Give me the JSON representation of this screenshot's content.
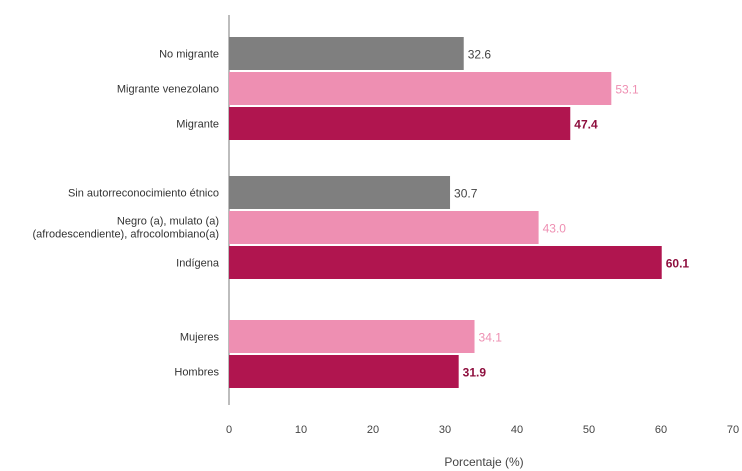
{
  "chart_data": {
    "type": "bar",
    "orientation": "horizontal",
    "title": "",
    "xlabel": "Porcentaje (%)",
    "ylabel": "",
    "xlim": [
      0,
      70
    ],
    "xticks": [
      "0",
      "10",
      "20",
      "30",
      "40",
      "50",
      "60",
      "70"
    ],
    "grid": false,
    "colors": {
      "gray": "#7f7f7f",
      "pink": "#ee8fb2",
      "crimson": "#b0154f"
    },
    "groups": [
      {
        "bars": [
          {
            "category": "No migrante",
            "value": 32.6,
            "label": "32.6",
            "color": "gray"
          },
          {
            "category": "Migrante venezolano",
            "value": 53.1,
            "label": "53.1",
            "color": "pink"
          },
          {
            "category": "Migrante",
            "value": 47.4,
            "label": "47.4",
            "color": "crimson"
          }
        ]
      },
      {
        "bars": [
          {
            "category": "Sin autorreconocimiento étnico",
            "value": 30.7,
            "label": "30.7",
            "color": "gray"
          },
          {
            "category": [
              "Negro (a), mulato (a)",
              "(afrodescendiente), afrocolombiano(a)"
            ],
            "value": 43.0,
            "label": "43.0",
            "color": "pink"
          },
          {
            "category": "Indígena",
            "value": 60.1,
            "label": "60.1",
            "color": "crimson"
          }
        ]
      },
      {
        "bars": [
          {
            "category": "Mujeres",
            "value": 34.1,
            "label": "34.1",
            "color": "pink"
          },
          {
            "category": "Hombres",
            "value": 31.9,
            "label": "31.9",
            "color": "crimson"
          }
        ]
      }
    ]
  }
}
